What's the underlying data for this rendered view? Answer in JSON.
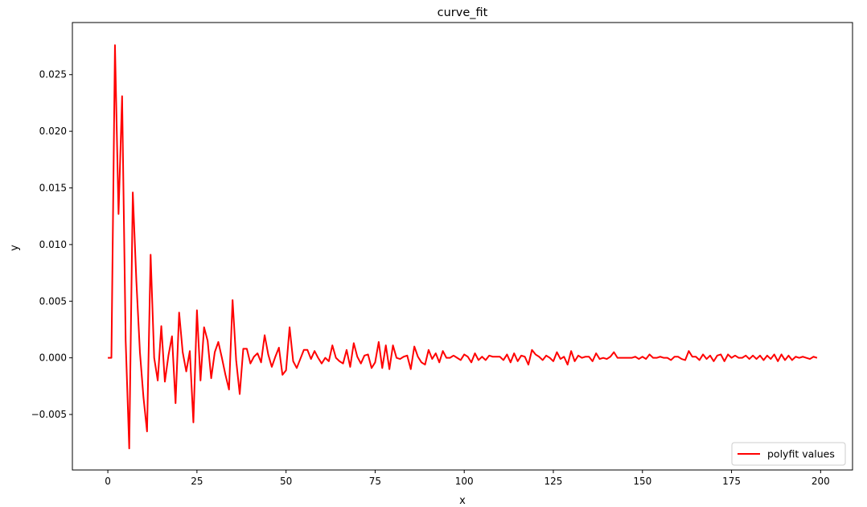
{
  "chart_data": {
    "type": "line",
    "title": "curve_fit",
    "xlabel": "x",
    "ylabel": "y",
    "xlim": [
      -9.95,
      208.95
    ],
    "ylim": [
      -0.0099,
      0.0296
    ],
    "xticks": [
      0,
      25,
      50,
      75,
      100,
      125,
      150,
      175,
      200
    ],
    "xtick_labels": [
      "0",
      "25",
      "50",
      "75",
      "100",
      "125",
      "150",
      "175",
      "200"
    ],
    "yticks": [
      -0.005,
      0.0,
      0.005,
      0.01,
      0.015,
      0.02,
      0.025
    ],
    "ytick_labels": [
      "−0.005",
      "0.000",
      "0.005",
      "0.010",
      "0.015",
      "0.020",
      "0.025"
    ],
    "grid": false,
    "legend_position": "lower right",
    "series": [
      {
        "name": "polyfit values",
        "color": "#ff0000",
        "x": [
          0,
          1,
          2,
          3,
          4,
          5,
          6,
          7,
          8,
          9,
          10,
          11,
          12,
          13,
          14,
          15,
          16,
          17,
          18,
          19,
          20,
          21,
          22,
          23,
          24,
          25,
          26,
          27,
          28,
          29,
          30,
          31,
          32,
          33,
          34,
          35,
          36,
          37,
          38,
          39,
          40,
          41,
          42,
          43,
          44,
          45,
          46,
          47,
          48,
          49,
          50,
          51,
          52,
          53,
          54,
          55,
          56,
          57,
          58,
          59,
          60,
          61,
          62,
          63,
          64,
          65,
          66,
          67,
          68,
          69,
          70,
          71,
          72,
          73,
          74,
          75,
          76,
          77,
          78,
          79,
          80,
          81,
          82,
          83,
          84,
          85,
          86,
          87,
          88,
          89,
          90,
          91,
          92,
          93,
          94,
          95,
          96,
          97,
          98,
          99,
          100,
          101,
          102,
          103,
          104,
          105,
          106,
          107,
          108,
          109,
          110,
          111,
          112,
          113,
          114,
          115,
          116,
          117,
          118,
          119,
          120,
          121,
          122,
          123,
          124,
          125,
          126,
          127,
          128,
          129,
          130,
          131,
          132,
          133,
          134,
          135,
          136,
          137,
          138,
          139,
          140,
          141,
          142,
          143,
          144,
          145,
          146,
          147,
          148,
          149,
          150,
          151,
          152,
          153,
          154,
          155,
          156,
          157,
          158,
          159,
          160,
          161,
          162,
          163,
          164,
          165,
          166,
          167,
          168,
          169,
          170,
          171,
          172,
          173,
          174,
          175,
          176,
          177,
          178,
          179,
          180,
          181,
          182,
          183,
          184,
          185,
          186,
          187,
          188,
          189,
          190,
          191,
          192,
          193,
          194,
          195,
          196,
          197,
          198,
          199
        ],
        "y": [
          0.0,
          0.0,
          0.0276,
          0.0127,
          0.0231,
          0.0015,
          -0.008,
          0.0146,
          0.0068,
          0.0005,
          -0.0035,
          -0.0065,
          0.0091,
          0.0,
          -0.002,
          0.0028,
          -0.0021,
          0.0002,
          0.0019,
          -0.004,
          0.004,
          0.0005,
          -0.0012,
          0.0006,
          -0.0057,
          0.0042,
          -0.002,
          0.0027,
          0.0015,
          -0.0018,
          0.0005,
          0.0014,
          0.0,
          -0.0015,
          -0.0028,
          0.0051,
          -0.0002,
          -0.0032,
          0.0008,
          0.0008,
          -0.0005,
          0.0001,
          0.0004,
          -0.0004,
          0.002,
          0.0003,
          -0.0008,
          0.0001,
          0.0009,
          -0.0015,
          -0.0011,
          0.0027,
          -0.0003,
          -0.0009,
          -0.0001,
          0.0007,
          0.0007,
          -0.0001,
          0.0006,
          0.0,
          -0.0005,
          0.0,
          -0.0003,
          0.0011,
          0.0,
          -0.0003,
          -0.0005,
          0.0007,
          -0.0008,
          0.0013,
          0.0001,
          -0.0005,
          0.0002,
          0.0003,
          -0.0009,
          -0.0004,
          0.0014,
          -0.0009,
          0.0011,
          -0.001,
          0.0011,
          0.0,
          -0.0001,
          0.0001,
          0.0002,
          -0.001,
          0.001,
          0.0001,
          -0.0004,
          -0.0006,
          0.0007,
          -0.0001,
          0.0004,
          -0.0004,
          0.0006,
          0.0,
          0.0,
          0.0002,
          0.0,
          -0.0002,
          0.0003,
          0.0001,
          -0.0004,
          0.0004,
          -0.0002,
          0.0001,
          -0.0002,
          0.0002,
          0.0001,
          0.0001,
          0.0001,
          -0.0002,
          0.0003,
          -0.0004,
          0.0004,
          -0.0003,
          0.0002,
          0.0001,
          -0.0006,
          0.0007,
          0.0003,
          0.0001,
          -0.0002,
          0.0002,
          0.0,
          -0.0003,
          0.0005,
          -0.0001,
          0.0001,
          -0.0006,
          0.0006,
          -0.0003,
          0.0002,
          0.0,
          0.0001,
          0.0001,
          -0.0003,
          0.0004,
          -0.0001,
          0.0,
          -0.0001,
          0.0001,
          0.0005,
          0.0,
          0.0,
          0.0,
          0.0,
          0.0,
          0.0001,
          -0.0001,
          0.0001,
          -0.0001,
          0.0003,
          0.0,
          0.0,
          0.0001,
          0.0,
          0.0,
          -0.0002,
          0.0001,
          0.0001,
          -0.0001,
          -0.0002,
          0.0006,
          0.0001,
          0.0001,
          -0.0002,
          0.0003,
          -0.0001,
          0.0002,
          -0.0003,
          0.0002,
          0.0003,
          -0.0003,
          0.0003,
          0.0,
          0.0002,
          0.0,
          0.0,
          0.0002,
          -0.0001,
          0.0002,
          -0.0001,
          0.0002,
          -0.0002,
          0.0002,
          -0.0001,
          0.0003,
          -0.0003,
          0.0003,
          -0.0002,
          0.0002,
          -0.0002,
          0.0001,
          0.0,
          0.0001,
          0.0,
          -0.0001,
          0.0001,
          0.0
        ]
      }
    ]
  }
}
